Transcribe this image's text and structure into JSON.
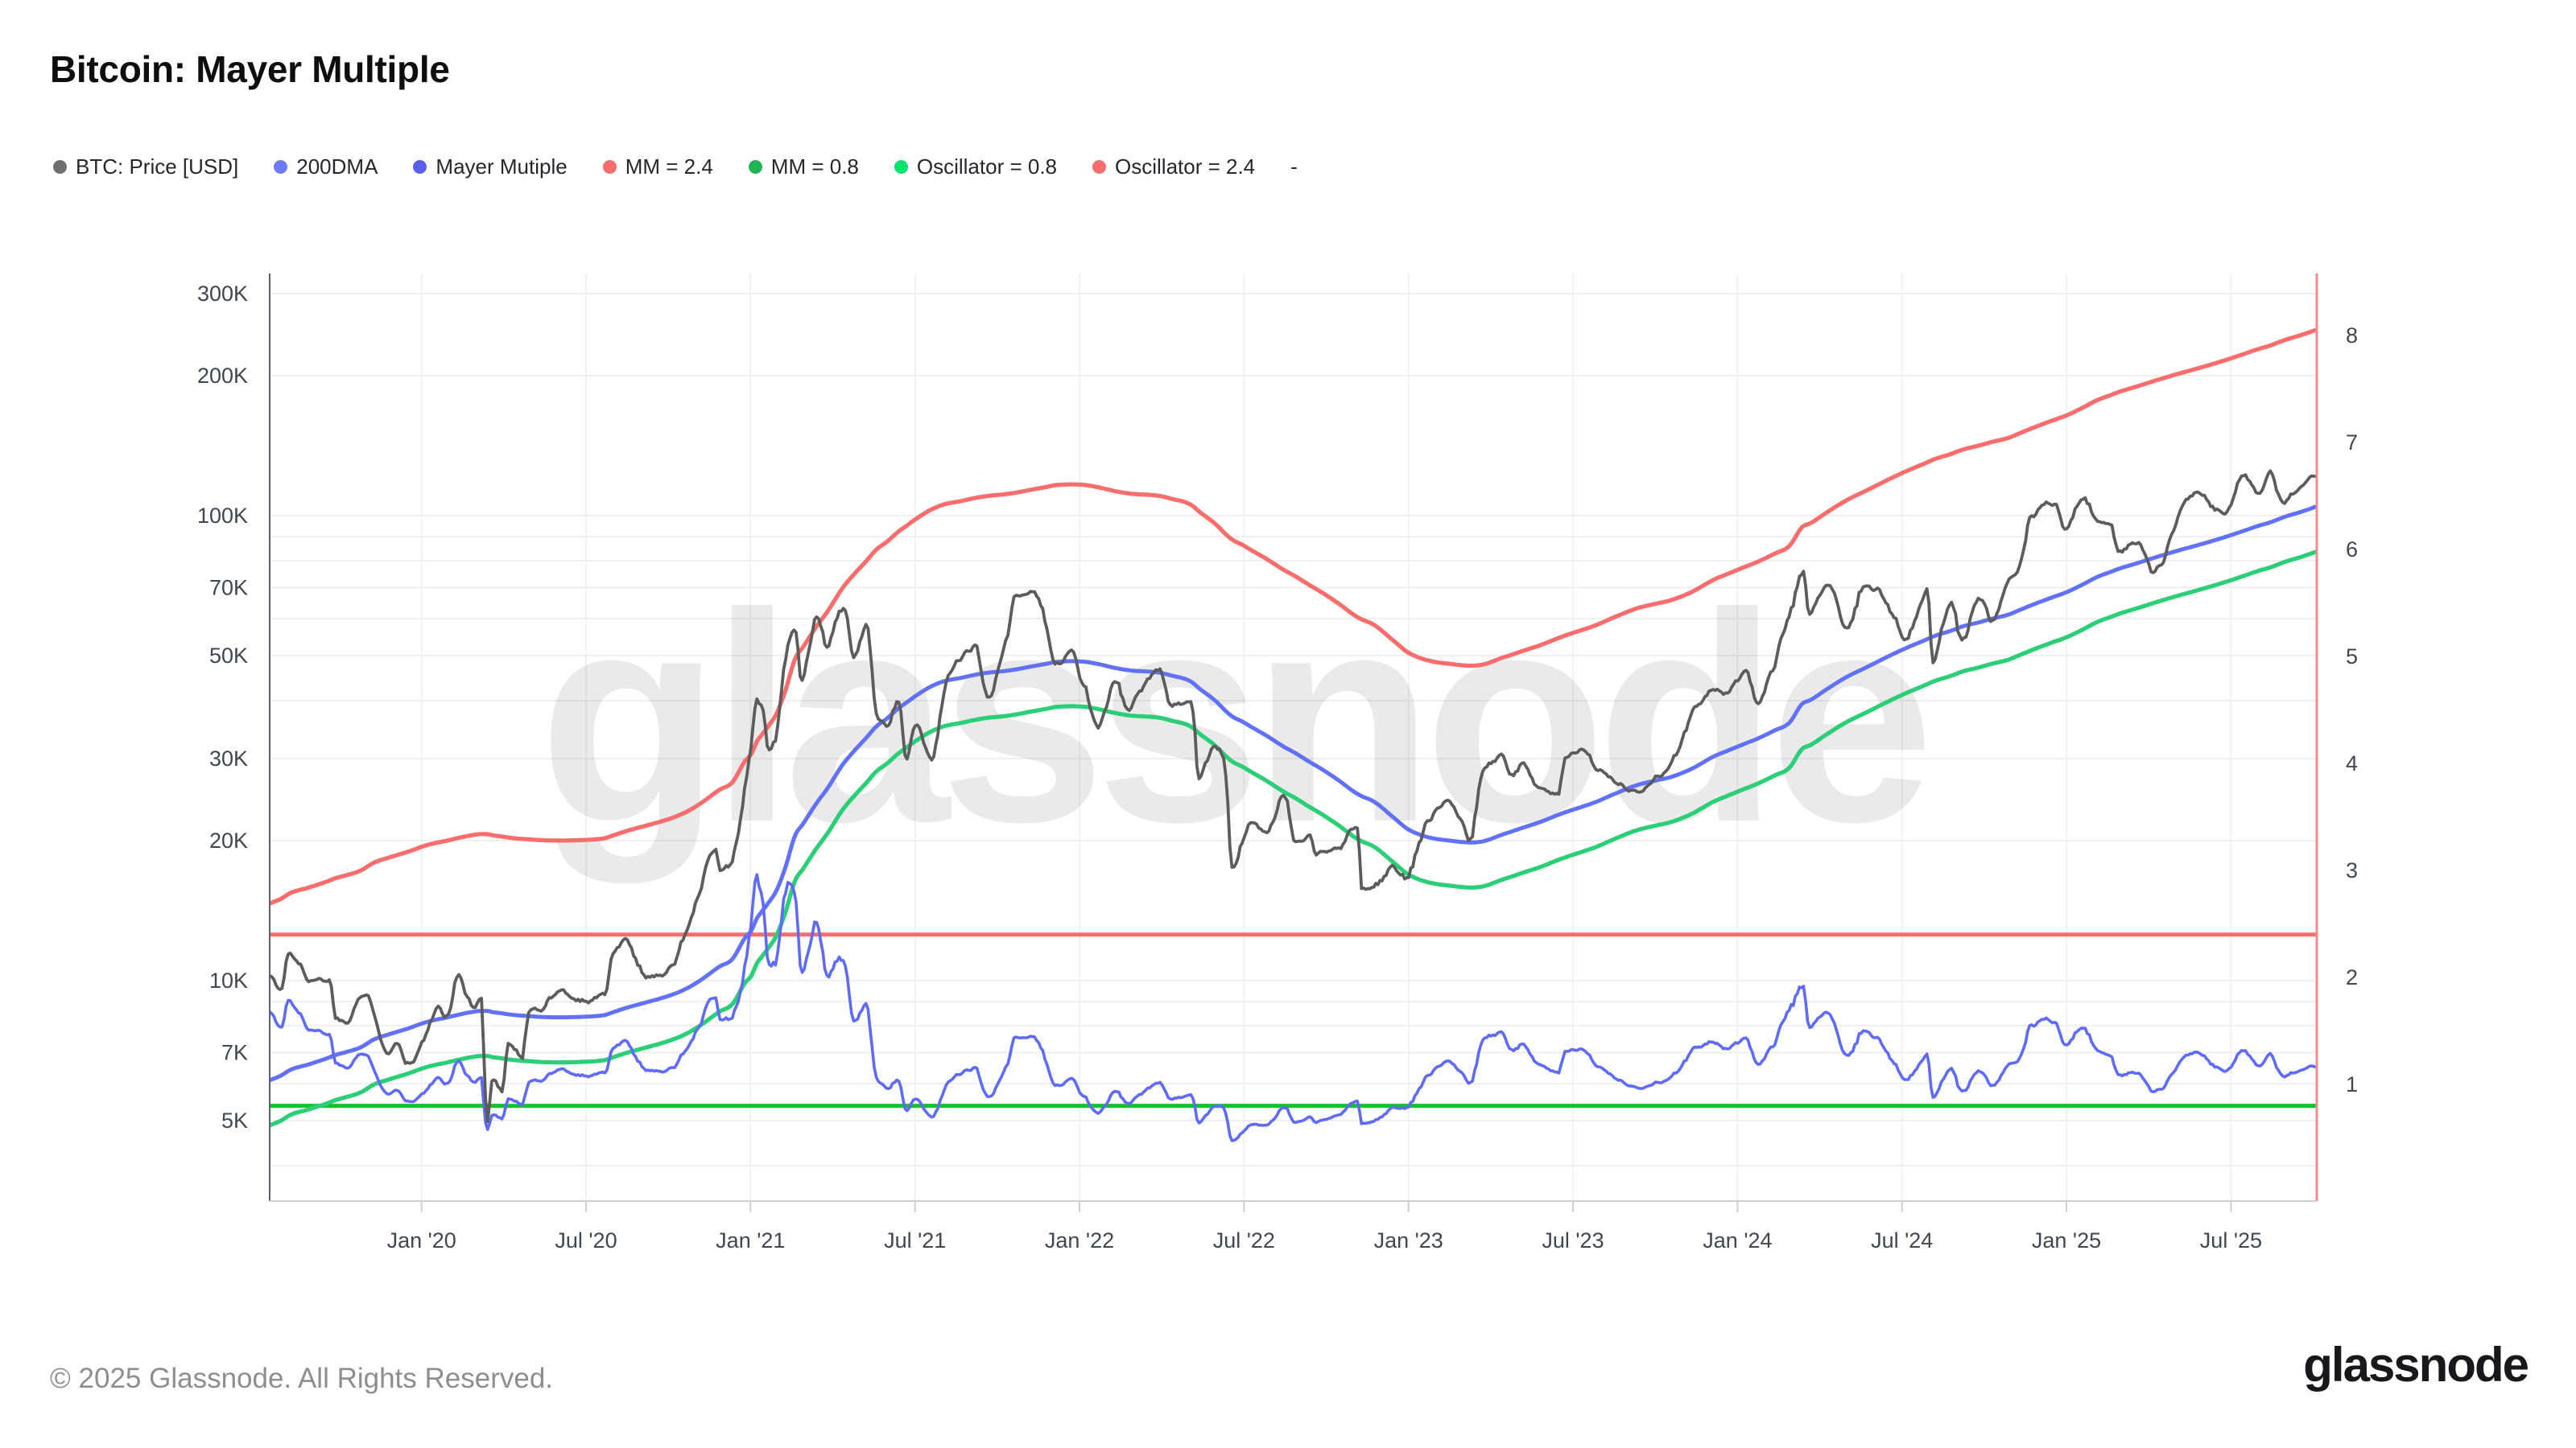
{
  "title": "Bitcoin: Mayer Multiple",
  "watermark": "glassnode",
  "footer": {
    "copyright": "© 2025 Glassnode. All Rights Reserved.",
    "brand": "glassnode"
  },
  "legend": [
    {
      "label": "BTC: Price [USD]",
      "color": "#6e6e6e"
    },
    {
      "label": "200DMA",
      "color": "#6d7bfa"
    },
    {
      "label": "Mayer Mutiple",
      "color": "#5a5ff0"
    },
    {
      "label": "MM = 2.4",
      "color": "#f96d6d"
    },
    {
      "label": "MM = 0.8",
      "color": "#1eb553"
    },
    {
      "label": "Oscillator = 0.8",
      "color": "#06e470"
    },
    {
      "label": "Oscillator = 2.4",
      "color": "#f96d6d"
    },
    {
      "label": "-",
      "color": ""
    }
  ],
  "chart_data": {
    "type": "line",
    "title": "Bitcoin: Mayer Multiple",
    "x_axis": {
      "ticks": [
        {
          "label": "Jan '20",
          "date": "2020-01-01"
        },
        {
          "label": "Jul '20",
          "date": "2020-07-01"
        },
        {
          "label": "Jan '21",
          "date": "2021-01-01"
        },
        {
          "label": "Jul '21",
          "date": "2021-07-01"
        },
        {
          "label": "Jan '22",
          "date": "2022-01-01"
        },
        {
          "label": "Jul '22",
          "date": "2022-07-01"
        },
        {
          "label": "Jan '23",
          "date": "2023-01-01"
        },
        {
          "label": "Jul '23",
          "date": "2023-07-01"
        },
        {
          "label": "Jan '24",
          "date": "2024-01-01"
        },
        {
          "label": "Jul '24",
          "date": "2024-07-01"
        },
        {
          "label": "Jan '25",
          "date": "2025-01-01"
        },
        {
          "label": "Jul '25",
          "date": "2025-07-01"
        }
      ],
      "range": [
        "2019-07-15",
        "2025-10-05"
      ]
    },
    "left_axis": {
      "scale": "log",
      "unit": "USD",
      "range": [
        3360,
        331000
      ],
      "ticks": [
        {
          "label": "300K",
          "value": 300000
        },
        {
          "label": "200K",
          "value": 200000
        },
        {
          "label": "100K",
          "value": 100000
        },
        {
          "label": "70K",
          "value": 70000
        },
        {
          "label": "50K",
          "value": 50000
        },
        {
          "label": "30K",
          "value": 30000
        },
        {
          "label": "20K",
          "value": 20000
        },
        {
          "label": "10K",
          "value": 10000
        },
        {
          "label": "7K",
          "value": 7000
        },
        {
          "label": "5K",
          "value": 5000
        }
      ],
      "minor_gridlines": [
        90000,
        80000,
        60000,
        40000,
        9000,
        8000,
        6000,
        4000
      ]
    },
    "right_axis": {
      "scale": "linear",
      "range": [
        -0.09,
        8.58
      ],
      "ticks": [
        {
          "label": "8",
          "value": 8
        },
        {
          "label": "7",
          "value": 7
        },
        {
          "label": "6",
          "value": 6
        },
        {
          "label": "5",
          "value": 5
        },
        {
          "label": "4",
          "value": 4
        },
        {
          "label": "3",
          "value": 3
        },
        {
          "label": "2",
          "value": 2
        },
        {
          "label": "1",
          "value": 1
        }
      ]
    },
    "reference_lines": [
      {
        "name": "Oscillator = 0.8",
        "axis": "right",
        "value": 0.8,
        "color": "#12c32c"
      },
      {
        "name": "Oscillator = 2.4",
        "axis": "right",
        "value": 2.4,
        "color": "#f96d6d"
      }
    ],
    "derived_bands": [
      {
        "name": "MM = 2.4",
        "of": "dma_200d_usd",
        "multiplier": 2.4,
        "axis": "left",
        "color": "#f96d6d"
      },
      {
        "name": "MM = 0.8",
        "of": "dma_200d_usd",
        "multiplier": 0.8,
        "axis": "left",
        "color": "#2ccf78"
      }
    ],
    "series_meta": {
      "btc_price_usd": {
        "name": "BTC: Price [USD]",
        "axis": "left",
        "color": "#5c5c5c"
      },
      "dma_200d_usd": {
        "name": "200DMA",
        "axis": "left",
        "color": "#6272f8"
      },
      "mayer_multiple": {
        "name": "Mayer Mutiple",
        "axis": "right",
        "color": "#5f6bf7",
        "definition": "btc_price_usd / dma_200d_usd"
      }
    },
    "columns": [
      "date",
      "btc_price_usd",
      "dma_200d_usd"
    ],
    "anchors": [
      [
        "2019-07-15",
        10300,
        6100
      ],
      [
        "2019-07-28",
        9550,
        6250
      ],
      [
        "2019-08-06",
        11500,
        6400
      ],
      [
        "2019-08-28",
        10100,
        6600
      ],
      [
        "2019-09-22",
        10000,
        6850
      ],
      [
        "2019-09-26",
        8450,
        6900
      ],
      [
        "2019-10-07",
        8200,
        7000
      ],
      [
        "2019-10-26",
        9250,
        7200
      ],
      [
        "2019-11-08",
        8800,
        7450
      ],
      [
        "2019-11-25",
        7050,
        7650
      ],
      [
        "2019-12-04",
        7300,
        7750
      ],
      [
        "2019-12-18",
        6650,
        7900
      ],
      [
        "2020-01-03",
        7350,
        8100
      ],
      [
        "2020-01-19",
        8650,
        8250
      ],
      [
        "2020-01-26",
        8300,
        8300
      ],
      [
        "2020-02-13",
        10250,
        8450
      ],
      [
        "2020-02-26",
        8800,
        8550
      ],
      [
        "2020-03-06",
        9100,
        8600
      ],
      [
        "2020-03-13",
        4950,
        8600
      ],
      [
        "2020-03-19",
        6150,
        8550
      ],
      [
        "2020-03-29",
        5900,
        8500
      ],
      [
        "2020-04-07",
        7300,
        8450
      ],
      [
        "2020-04-21",
        6850,
        8400
      ],
      [
        "2020-04-30",
        8750,
        8380
      ],
      [
        "2020-05-10",
        8550,
        8350
      ],
      [
        "2020-06-01",
        9550,
        8330
      ],
      [
        "2020-06-27",
        9050,
        8350
      ],
      [
        "2020-07-21",
        9350,
        8420
      ],
      [
        "2020-08-01",
        11250,
        8550
      ],
      [
        "2020-08-17",
        12250,
        8750
      ],
      [
        "2020-09-05",
        10200,
        8950
      ],
      [
        "2020-09-23",
        10350,
        9150
      ],
      [
        "2020-10-04",
        10650,
        9300
      ],
      [
        "2020-10-21",
        12750,
        9600
      ],
      [
        "2020-11-06",
        15500,
        10000
      ],
      [
        "2020-11-24",
        19200,
        10600
      ],
      [
        "2020-11-27",
        17150,
        10700
      ],
      [
        "2020-12-11",
        18050,
        11100
      ],
      [
        "2020-12-26",
        26300,
        12400
      ],
      [
        "2021-01-02",
        32200,
        12800
      ],
      [
        "2021-01-08",
        40800,
        13600
      ],
      [
        "2021-01-14",
        37300,
        14100
      ],
      [
        "2021-01-21",
        30900,
        14700
      ],
      [
        "2021-01-29",
        34300,
        15500
      ],
      [
        "2021-02-08",
        46400,
        17200
      ],
      [
        "2021-02-21",
        57400,
        20700
      ],
      [
        "2021-02-28",
        45200,
        21600
      ],
      [
        "2021-03-13",
        61000,
        24000
      ],
      [
        "2021-03-25",
        52500,
        25800
      ],
      [
        "2021-04-13",
        63500,
        29300
      ],
      [
        "2021-04-25",
        49500,
        31200
      ],
      [
        "2021-05-08",
        58800,
        33300
      ],
      [
        "2021-05-19",
        37000,
        35200
      ],
      [
        "2021-05-30",
        35700,
        36500
      ],
      [
        "2021-06-14",
        40500,
        38600
      ],
      [
        "2021-06-22",
        29800,
        39600
      ],
      [
        "2021-07-04",
        35300,
        41200
      ],
      [
        "2021-07-20",
        29700,
        43000
      ],
      [
        "2021-08-01",
        41500,
        43900
      ],
      [
        "2021-08-23",
        49500,
        44800
      ],
      [
        "2021-09-06",
        52700,
        45400
      ],
      [
        "2021-09-21",
        40700,
        45900
      ],
      [
        "2021-10-10",
        54700,
        46300
      ],
      [
        "2021-10-20",
        66000,
        46600
      ],
      [
        "2021-11-10",
        68800,
        47400
      ],
      [
        "2021-11-28",
        54700,
        48100
      ],
      [
        "2021-12-04",
        47500,
        48400
      ],
      [
        "2021-12-23",
        50800,
        48600
      ],
      [
        "2022-01-05",
        43400,
        48500
      ],
      [
        "2022-01-22",
        35100,
        47900
      ],
      [
        "2022-02-10",
        43500,
        47000
      ],
      [
        "2022-02-24",
        38300,
        46500
      ],
      [
        "2022-03-29",
        47400,
        45900
      ],
      [
        "2022-04-11",
        39500,
        45300
      ],
      [
        "2022-05-04",
        39700,
        43800
      ],
      [
        "2022-05-12",
        27200,
        42500
      ],
      [
        "2022-05-31",
        31800,
        39800
      ],
      [
        "2022-06-11",
        28400,
        38000
      ],
      [
        "2022-06-18",
        17800,
        37000
      ],
      [
        "2022-06-30",
        19900,
        36000
      ],
      [
        "2022-07-08",
        21600,
        35200
      ],
      [
        "2022-07-26",
        21000,
        33600
      ],
      [
        "2022-08-15",
        25000,
        31800
      ],
      [
        "2022-08-28",
        19900,
        30800
      ],
      [
        "2022-09-13",
        20200,
        29500
      ],
      [
        "2022-09-21",
        18900,
        28900
      ],
      [
        "2022-10-14",
        19200,
        27000
      ],
      [
        "2022-11-05",
        21300,
        25200
      ],
      [
        "2022-11-10",
        15900,
        24900
      ],
      [
        "2022-11-21",
        15800,
        24400
      ],
      [
        "2022-12-15",
        17400,
        22400
      ],
      [
        "2022-12-30",
        16550,
        21200
      ],
      [
        "2023-01-13",
        19900,
        20600
      ],
      [
        "2023-01-29",
        23000,
        20200
      ],
      [
        "2023-02-15",
        24600,
        20000
      ],
      [
        "2023-03-10",
        20200,
        19800
      ],
      [
        "2023-03-22",
        28100,
        19900
      ],
      [
        "2023-04-14",
        30200,
        20600
      ],
      [
        "2023-04-24",
        27600,
        20900
      ],
      [
        "2023-05-06",
        28900,
        21300
      ],
      [
        "2023-05-25",
        26300,
        21900
      ],
      [
        "2023-06-15",
        25100,
        22700
      ],
      [
        "2023-06-23",
        30700,
        23000
      ],
      [
        "2023-07-13",
        31300,
        23700
      ],
      [
        "2023-07-24",
        29200,
        24100
      ],
      [
        "2023-08-17",
        26600,
        25200
      ],
      [
        "2023-09-11",
        25200,
        26300
      ],
      [
        "2023-10-01",
        27000,
        26900
      ],
      [
        "2023-10-16",
        28500,
        27300
      ],
      [
        "2023-11-09",
        36700,
        28400
      ],
      [
        "2023-12-08",
        42500,
        30500
      ],
      [
        "2023-12-17",
        41400,
        31000
      ],
      [
        "2024-01-11",
        46300,
        32400
      ],
      [
        "2024-01-23",
        39100,
        33100
      ],
      [
        "2024-02-12",
        48100,
        34500
      ],
      [
        "2024-02-28",
        60400,
        35800
      ],
      [
        "2024-03-13",
        73100,
        39500
      ],
      [
        "2024-03-20",
        61500,
        40000
      ],
      [
        "2024-04-08",
        71000,
        42200
      ],
      [
        "2024-05-01",
        57500,
        45000
      ],
      [
        "2024-05-21",
        71400,
        47000
      ],
      [
        "2024-06-24",
        60300,
        50600
      ],
      [
        "2024-07-05",
        54000,
        51800
      ],
      [
        "2024-07-29",
        68200,
        54200
      ],
      [
        "2024-08-05",
        49100,
        54900
      ],
      [
        "2024-08-25",
        64200,
        56500
      ],
      [
        "2024-09-06",
        53900,
        57600
      ],
      [
        "2024-09-27",
        65800,
        59000
      ],
      [
        "2024-10-10",
        60300,
        60000
      ],
      [
        "2024-10-29",
        72700,
        61300
      ],
      [
        "2024-11-09",
        76500,
        62500
      ],
      [
        "2024-11-22",
        99000,
        64000
      ],
      [
        "2024-12-17",
        106100,
        66800
      ],
      [
        "2024-12-30",
        92600,
        68200
      ],
      [
        "2025-01-20",
        109000,
        71200
      ],
      [
        "2025-02-03",
        97700,
        73500
      ],
      [
        "2025-02-21",
        96200,
        75800
      ],
      [
        "2025-02-28",
        84400,
        76700
      ],
      [
        "2025-03-19",
        86800,
        79000
      ],
      [
        "2025-04-08",
        76300,
        81200
      ],
      [
        "2025-05-01",
        96500,
        83800
      ],
      [
        "2025-05-22",
        111700,
        86000
      ],
      [
        "2025-06-22",
        101000,
        89500
      ],
      [
        "2025-07-14",
        122000,
        92500
      ],
      [
        "2025-08-01",
        113500,
        95000
      ],
      [
        "2025-08-13",
        123500,
        96500
      ],
      [
        "2025-09-01",
        108500,
        99500
      ],
      [
        "2025-09-18",
        117000,
        101800
      ],
      [
        "2025-10-05",
        122500,
        104600
      ]
    ]
  }
}
